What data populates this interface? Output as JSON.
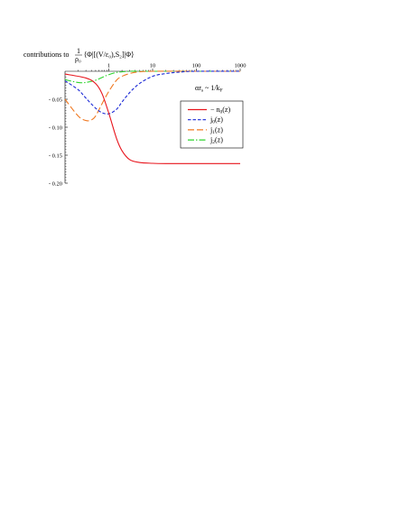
{
  "chart_data": {
    "type": "line",
    "title_prefix": "contributions to",
    "title_frac_num": "1",
    "title_frac_den": "ρ₀",
    "title_expr": "⟨Φ|[(V/ε₀),S₂]|Φ⟩",
    "x_annotation": {
      "main": "αr",
      "sub1": "s",
      "mid": " ~ 1/k",
      "sub2": "F"
    },
    "x_scale": "log",
    "x_range": [
      0.1,
      1000
    ],
    "y_range": [
      -0.2,
      0.0
    ],
    "x_ticks": [
      1,
      10,
      100,
      1000
    ],
    "x_tick_labels": [
      "1",
      "10",
      "100",
      "1000"
    ],
    "y_ticks": [
      -0.05,
      -0.1,
      -0.15,
      -0.2
    ],
    "y_tick_labels": [
      "- 0.05",
      "- 0.10",
      "- 0.15",
      "- 0.20"
    ],
    "legend_position": "right",
    "series": [
      {
        "name_main": "− n",
        "name_sub": "0",
        "name_tail": "(z)",
        "color": "#e8141c",
        "dash": "",
        "x": [
          0.1,
          0.3,
          0.5,
          0.7,
          1.0,
          1.5,
          2,
          3,
          5,
          10,
          20,
          50,
          100,
          1000
        ],
        "y": [
          -0.005,
          -0.012,
          -0.022,
          -0.04,
          -0.075,
          -0.12,
          -0.142,
          -0.158,
          -0.163,
          -0.1645,
          -0.165,
          -0.165,
          -0.165,
          -0.165
        ]
      },
      {
        "name_main": "j",
        "name_sub": "0",
        "name_tail": "(z)",
        "color": "#1c2ad6",
        "dash": "3.5,2",
        "x": [
          0.1,
          0.2,
          0.3,
          0.5,
          0.7,
          1.0,
          1.5,
          2,
          3,
          5,
          10,
          20,
          50,
          100,
          1000
        ],
        "y": [
          -0.017,
          -0.033,
          -0.048,
          -0.066,
          -0.074,
          -0.076,
          -0.068,
          -0.055,
          -0.038,
          -0.022,
          -0.009,
          -0.004,
          -0.001,
          0.0,
          0.0
        ]
      },
      {
        "name_main": "j",
        "name_sub": "1",
        "name_tail": "(z)",
        "color": "#f07820",
        "dash": "7,3",
        "x": [
          0.1,
          0.2,
          0.3,
          0.4,
          0.5,
          0.7,
          1.0,
          1.5,
          2,
          3,
          5,
          10,
          100,
          1000
        ],
        "y": [
          -0.05,
          -0.08,
          -0.088,
          -0.087,
          -0.08,
          -0.058,
          -0.036,
          -0.016,
          -0.009,
          -0.004,
          -0.001,
          0.0,
          0.0,
          0.0
        ]
      },
      {
        "name_main": "j",
        "name_sub": "2",
        "name_tail": "(z)",
        "color": "#2ed42e",
        "dash": "7,2,1.5,2",
        "x": [
          0.1,
          0.2,
          0.3,
          0.5,
          0.7,
          1.0,
          1.5,
          2,
          3,
          5,
          10,
          100,
          1000
        ],
        "y": [
          -0.015,
          -0.02,
          -0.02,
          -0.016,
          -0.011,
          -0.006,
          -0.002,
          -0.001,
          0.0,
          0.0,
          0.0,
          0.0,
          0.0
        ]
      }
    ]
  }
}
